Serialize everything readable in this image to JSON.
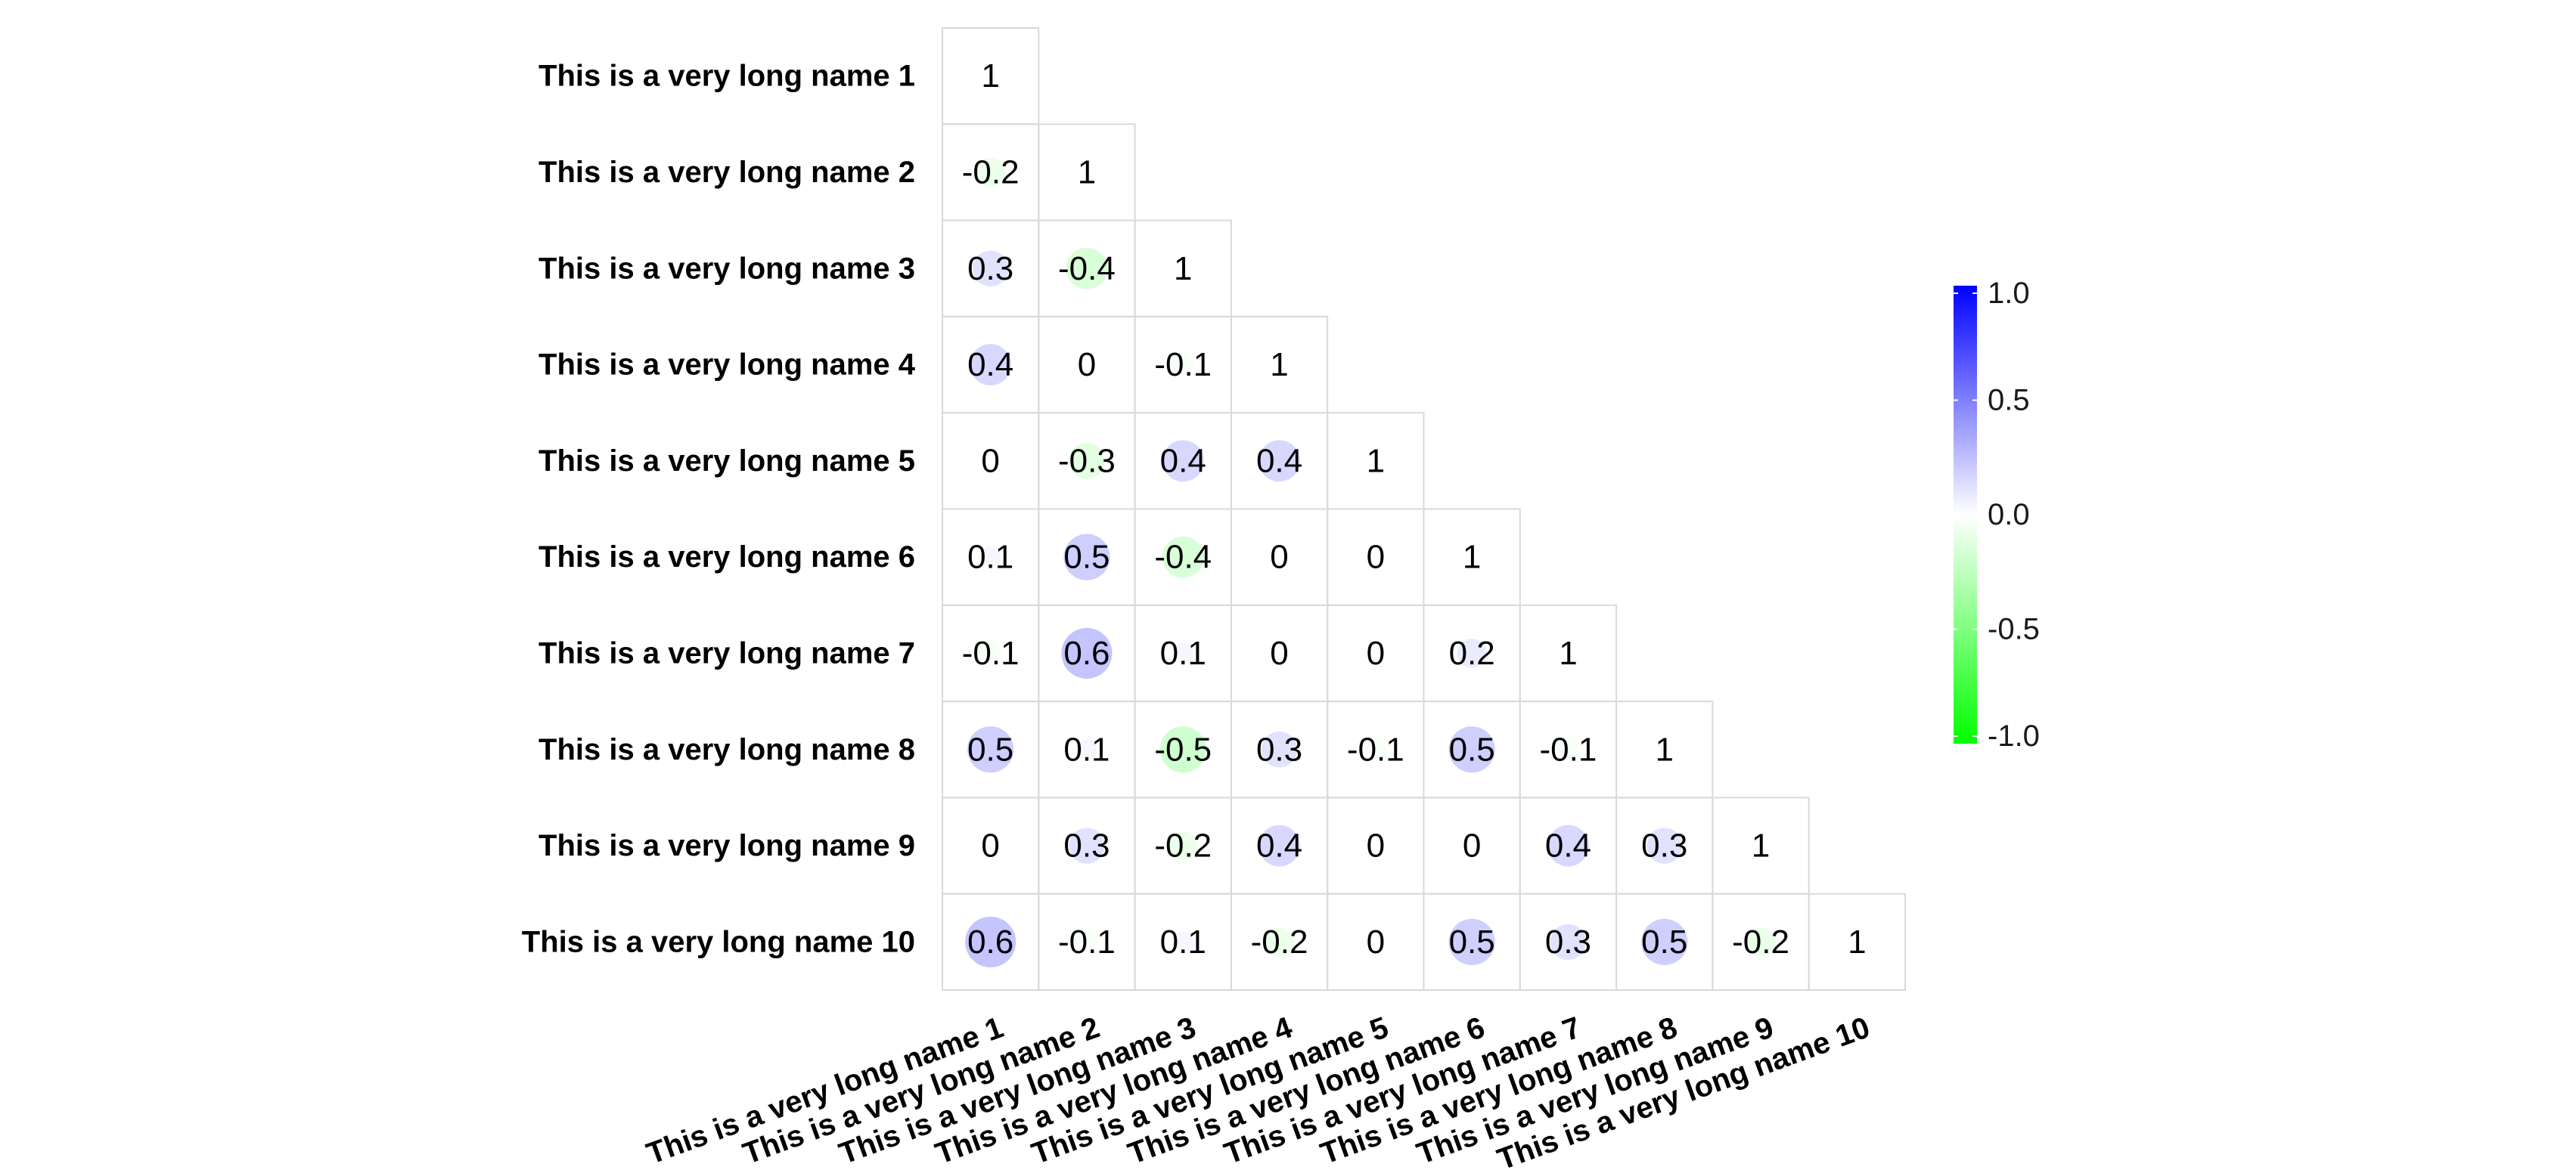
{
  "chart_data": {
    "type": "heatmap",
    "subtype": "correlation-lower-triangle-circles",
    "title": "",
    "variables": [
      "This is a very long name 1",
      "This is a very long name 2",
      "This is a very long name 3",
      "This is a very long name 4",
      "This is a very long name 5",
      "This is a very long name 6",
      "This is a very long name 7",
      "This is a very long name 8",
      "This is a very long name 9",
      "This is a very long name 10"
    ],
    "matrix": [
      [
        1
      ],
      [
        -0.2,
        1
      ],
      [
        0.3,
        -0.4,
        1
      ],
      [
        0.4,
        0,
        -0.1,
        1
      ],
      [
        0,
        -0.3,
        0.4,
        0.4,
        1
      ],
      [
        0.1,
        0.5,
        -0.4,
        0,
        0,
        1
      ],
      [
        -0.1,
        0.6,
        0.1,
        0,
        0,
        0.2,
        1
      ],
      [
        0.5,
        0.1,
        -0.5,
        0.3,
        -0.1,
        0.5,
        -0.1,
        1
      ],
      [
        0,
        0.3,
        -0.2,
        0.4,
        0,
        0,
        0.4,
        0.3,
        1
      ],
      [
        0.6,
        -0.1,
        0.1,
        -0.2,
        0,
        0.5,
        0.3,
        0.5,
        -0.2,
        1
      ]
    ],
    "color_scale": {
      "low": "#00ff00",
      "mid": "#ffffff",
      "high": "#0000ff",
      "limits": [
        -1,
        1
      ],
      "ticks": [
        "1.0",
        "0.5",
        "0.0",
        "-0.5",
        "-1.0"
      ]
    },
    "legend": "right",
    "grid": true
  }
}
